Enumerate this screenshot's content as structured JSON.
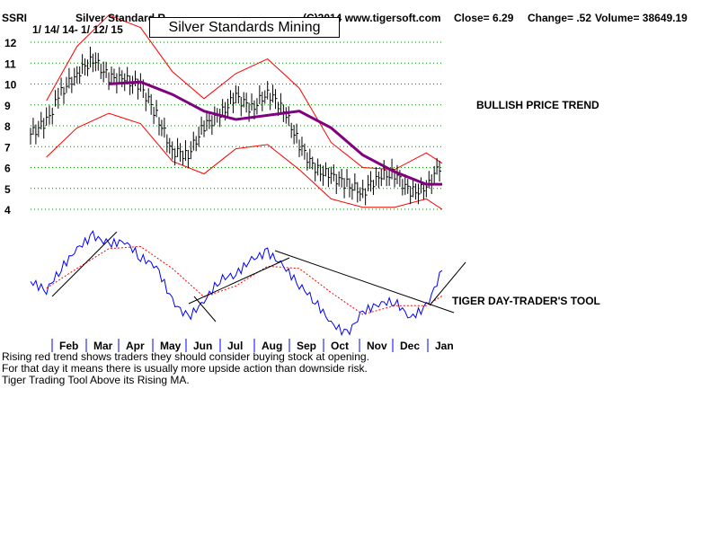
{
  "header": {
    "ticker": "SSRI",
    "name_partial": "Silver Standard R",
    "copyright": "(C)2014 www.tigersoft.com",
    "close": "Close=  6.29",
    "change": "Change= .52",
    "volume": "Volume= 38649.19",
    "date_range": "1/ 14/ 14-  1/ 12/ 15"
  },
  "title_box": "Silver Standards Mining",
  "annotations": {
    "bullish": "BULLISH PRICE TREND",
    "tool": "TIGER DAY-TRADER'S TOOL"
  },
  "notes": [
    "Rising red trend shows traders they should consider buying stock at opening.",
    " For that day it means there is usually more upside action than downside risk.",
    "Tiger Trading Tool Above its Rising MA."
  ],
  "colors": {
    "price_bars": "#000000",
    "bollinger": "#ff0000",
    "moving_average": "#800080",
    "grid": "#008000",
    "tool_line": "#0000ff",
    "tool_ma": "#ff0000",
    "trendlines": "#000000"
  },
  "chart_data": [
    {
      "type": "line",
      "title": "Silver Standards Mining",
      "ylim": [
        4,
        12
      ],
      "yticks": [
        12,
        11,
        10,
        9,
        8,
        7,
        6,
        5,
        4
      ],
      "grid": true,
      "months": [
        "Feb",
        "Mar",
        "Apr",
        "May",
        "Jun",
        "Jul",
        "Aug",
        "Sep",
        "Oct",
        "Nov",
        "Dec",
        "Jan"
      ],
      "series": [
        {
          "role": "price_close",
          "x": [
            "Jan 14",
            "Jan 28",
            "Feb 10",
            "Feb 24",
            "Mar 10",
            "Mar 24",
            "Apr 7",
            "Apr 21",
            "May 5",
            "May 19",
            "Jun 2",
            "Jun 16",
            "Jun 30",
            "Jul 14",
            "Jul 28",
            "Aug 11",
            "Aug 25",
            "Sep 8",
            "Sep 22",
            "Oct 6",
            "Oct 20",
            "Nov 3",
            "Nov 17",
            "Dec 1",
            "Dec 15",
            "Dec 29",
            "Jan 12"
          ],
          "values": [
            7.6,
            8.2,
            9.6,
            10.5,
            11.2,
            10.3,
            10.2,
            9.9,
            8.5,
            6.8,
            6.6,
            8.0,
            8.5,
            9.4,
            8.8,
            9.6,
            8.8,
            7.1,
            5.9,
            5.6,
            5.2,
            4.8,
            5.6,
            5.7,
            4.8,
            5.0,
            6.29
          ]
        },
        {
          "role": "moving_average",
          "x": [
            "Mar 24",
            "Apr 21",
            "May 19",
            "Jun 16",
            "Jul 14",
            "Aug 11",
            "Sep 8",
            "Oct 6",
            "Nov 3",
            "Dec 1",
            "Dec 29",
            "Jan 12"
          ],
          "values": [
            10.0,
            10.1,
            9.5,
            8.7,
            8.3,
            8.5,
            8.7,
            7.9,
            6.6,
            5.8,
            5.2,
            5.2
          ]
        },
        {
          "role": "upper_band",
          "x": [
            "Jan 28",
            "Feb 24",
            "Mar 24",
            "Apr 21",
            "May 19",
            "Jun 16",
            "Jul 14",
            "Aug 11",
            "Sep 8",
            "Oct 6",
            "Nov 3",
            "Dec 1",
            "Dec 29",
            "Jan 12"
          ],
          "values": [
            9.2,
            11.8,
            13.3,
            12.7,
            10.6,
            9.3,
            10.5,
            11.2,
            9.8,
            7.2,
            6.0,
            5.9,
            6.7,
            6.2
          ]
        },
        {
          "role": "lower_band",
          "x": [
            "Jan 28",
            "Feb 24",
            "Mar 24",
            "Apr 21",
            "May 19",
            "Jun 16",
            "Jul 14",
            "Aug 11",
            "Sep 8",
            "Oct 6",
            "Nov 3",
            "Dec 1",
            "Dec 29",
            "Jan 12"
          ],
          "values": [
            6.5,
            7.9,
            8.6,
            8.1,
            6.3,
            5.7,
            6.9,
            7.1,
            5.9,
            4.5,
            4.1,
            4.1,
            4.5,
            4.0
          ]
        }
      ]
    },
    {
      "type": "line",
      "title": "TIGER DAY-TRADER'S TOOL",
      "grid": false,
      "series": [
        {
          "role": "tool",
          "x": [
            "Jan 14",
            "Jan 28",
            "Feb 10",
            "Feb 24",
            "Mar 10",
            "Mar 24",
            "Apr 7",
            "Apr 21",
            "May 5",
            "May 19",
            "Jun 2",
            "Jun 16",
            "Jun 30",
            "Jul 14",
            "Jul 28",
            "Aug 11",
            "Aug 25",
            "Sep 8",
            "Sep 22",
            "Oct 6",
            "Oct 20",
            "Nov 3",
            "Nov 17",
            "Dec 1",
            "Dec 15",
            "Dec 29",
            "Jan 12"
          ],
          "values": [
            0.48,
            0.4,
            0.6,
            0.78,
            0.9,
            0.82,
            0.85,
            0.7,
            0.62,
            0.3,
            0.15,
            0.3,
            0.5,
            0.55,
            0.68,
            0.75,
            0.62,
            0.45,
            0.3,
            0.1,
            0.0,
            0.2,
            0.28,
            0.3,
            0.15,
            0.25,
            0.58
          ]
        },
        {
          "role": "tool_ma",
          "x": [
            "Jan 28",
            "Feb 24",
            "Mar 24",
            "Apr 21",
            "May 19",
            "Jun 16",
            "Jul 14",
            "Aug 11",
            "Sep 8",
            "Oct 6",
            "Nov 3",
            "Dec 1",
            "Dec 29",
            "Jan 12"
          ],
          "values": [
            0.42,
            0.6,
            0.78,
            0.8,
            0.6,
            0.34,
            0.44,
            0.62,
            0.6,
            0.38,
            0.18,
            0.26,
            0.26,
            0.35
          ]
        }
      ]
    }
  ]
}
